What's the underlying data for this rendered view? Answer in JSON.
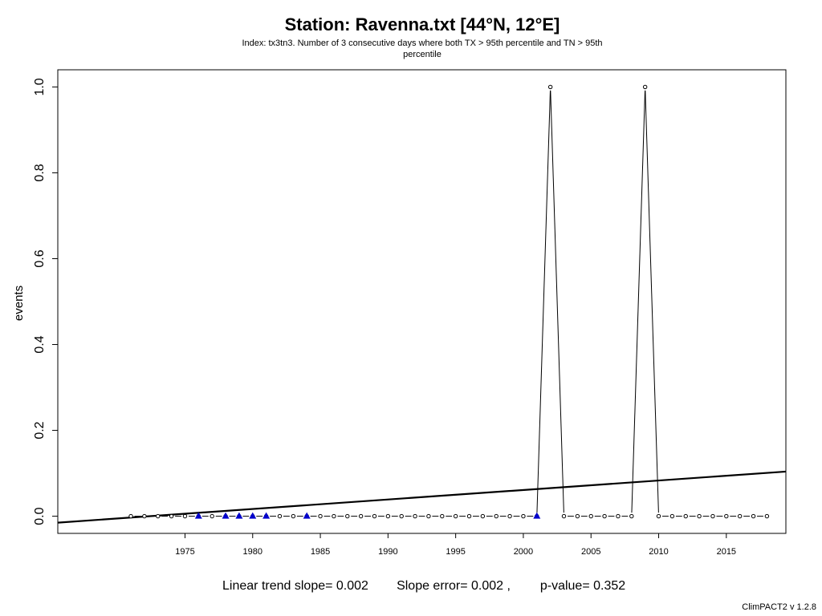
{
  "chart_data": {
    "type": "line",
    "title": "Station: Ravenna.txt [44°N, 12°E]",
    "subtitle_lines": [
      "Index: tx3tn3. Number of 3 consecutive days where both TX > 95th percentile and TN > 95th",
      "percentile"
    ],
    "xlabel": "",
    "ylabel": "events",
    "xlim": [
      1965.6,
      2019.4
    ],
    "ylim": [
      -0.04,
      1.04
    ],
    "x_ticks": [
      1975,
      1980,
      1985,
      1990,
      1995,
      2000,
      2005,
      2010,
      2015
    ],
    "y_ticks": [
      0.0,
      0.2,
      0.4,
      0.6,
      0.8,
      1.0
    ],
    "y_tick_labels": [
      "0.0",
      "0.2",
      "0.4",
      "0.6",
      "0.8",
      "1.0"
    ],
    "series": [
      {
        "x": [
          1971,
          1972,
          1973,
          1974,
          1975,
          1976,
          1977,
          1978,
          1979,
          1980,
          1981,
          1982,
          1983,
          1984,
          1985,
          1986,
          1987,
          1988,
          1989,
          1990,
          1991,
          1992,
          1993,
          1994,
          1995,
          1996,
          1997,
          1998,
          1999,
          2000,
          2001,
          2002,
          2003,
          2004,
          2005,
          2006,
          2007,
          2008,
          2009,
          2010,
          2011,
          2012,
          2013,
          2014,
          2015,
          2016,
          2017,
          2018
        ],
        "values": [
          0,
          0,
          0,
          0,
          0,
          0,
          0,
          0,
          0,
          0,
          0,
          0,
          0,
          0,
          0,
          0,
          0,
          0,
          0,
          0,
          0,
          0,
          0,
          0,
          0,
          0,
          0,
          0,
          0,
          0,
          0,
          1,
          0,
          0,
          0,
          0,
          0,
          0,
          1,
          0,
          0,
          0,
          0,
          0,
          0,
          0,
          0,
          0
        ],
        "color": "#000000"
      }
    ],
    "missing_years": [
      1976,
      1978,
      1979,
      1980,
      1981,
      1984,
      2001
    ],
    "missing_marker_color": "#0000cc",
    "trend_line": {
      "slope": 0.002,
      "at_x": [
        1965.6,
        2019.4
      ],
      "y": [
        -0.015,
        0.104
      ]
    },
    "grid": false,
    "footer": {
      "slope_text": "Linear trend slope= 0.002",
      "error_text": "Slope error= 0.002 ,",
      "pvalue_text": "p-value= 0.352"
    },
    "credit": "ClimPACT2 v 1.2.8"
  }
}
